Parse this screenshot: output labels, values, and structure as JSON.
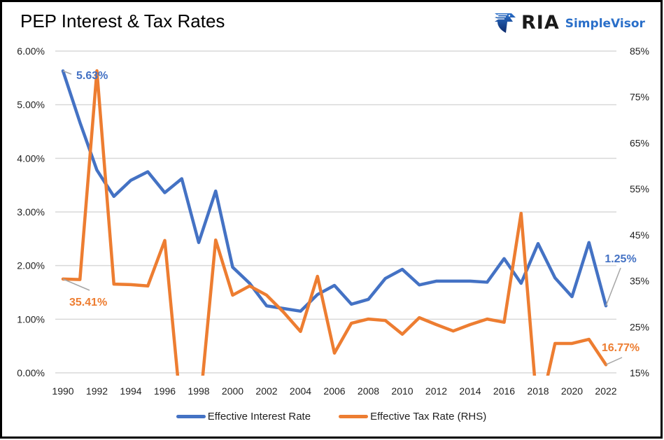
{
  "title": "PEP Interest & Tax Rates",
  "logo": {
    "icon": "eagle-shield-icon",
    "brand": "RIA",
    "product": "SimpleVisor",
    "brand_color": "#1a1a1a",
    "product_color": "#2a6fc9"
  },
  "chart_data": {
    "type": "line",
    "title": "PEP Interest & Tax Rates",
    "xlabel": "",
    "ylabel": "",
    "x": [
      1990,
      1991,
      1992,
      1993,
      1994,
      1995,
      1996,
      1997,
      1998,
      1999,
      2000,
      2001,
      2002,
      2003,
      2004,
      2005,
      2006,
      2007,
      2008,
      2009,
      2010,
      2011,
      2012,
      2013,
      2014,
      2015,
      2016,
      2017,
      2018,
      2019,
      2020,
      2021,
      2022
    ],
    "x_tick_labels": [
      "1990",
      "1992",
      "1994",
      "1996",
      "1998",
      "2000",
      "2002",
      "2004",
      "2006",
      "2008",
      "2010",
      "2012",
      "2014",
      "2016",
      "2018",
      "2020",
      "2022"
    ],
    "y_left": {
      "range": [
        0,
        6
      ],
      "ticks": [
        0,
        1,
        2,
        3,
        4,
        5,
        6
      ],
      "tick_labels": [
        "0.00%",
        "1.00%",
        "2.00%",
        "3.00%",
        "4.00%",
        "5.00%",
        "6.00%"
      ]
    },
    "y_right": {
      "range": [
        15,
        85
      ],
      "ticks": [
        15,
        25,
        35,
        45,
        55,
        65,
        75,
        85
      ],
      "tick_labels": [
        "15%",
        "25%",
        "35%",
        "45%",
        "55%",
        "65%",
        "75%",
        "85%"
      ]
    },
    "grid": true,
    "legend_position": "bottom",
    "series": [
      {
        "name": "Effective Interest Rate",
        "axis": "left",
        "color": "#4472c4",
        "values": [
          5.63,
          4.67,
          3.78,
          3.29,
          3.59,
          3.75,
          3.36,
          3.62,
          2.43,
          3.39,
          1.97,
          1.67,
          1.25,
          1.2,
          1.15,
          1.46,
          1.63,
          1.28,
          1.37,
          1.76,
          1.93,
          1.64,
          1.71,
          1.71,
          1.71,
          1.69,
          2.13,
          1.67,
          2.41,
          1.77,
          1.42,
          2.43,
          1.25
        ],
        "annotations": [
          {
            "x": 1990,
            "label": "5.63%"
          },
          {
            "x": 2022,
            "label": "1.25%"
          }
        ]
      },
      {
        "name": "Effective Tax Rate (RHS)",
        "axis": "right",
        "color": "#ed7d31",
        "values": [
          35.41,
          35.3,
          80.7,
          34.3,
          34.2,
          33.9,
          43.8,
          5.0,
          5.0,
          43.9,
          31.9,
          33.9,
          31.9,
          28.2,
          24.0,
          36.0,
          19.3,
          25.8,
          26.7,
          26.4,
          23.4,
          27.0,
          25.5,
          24.1,
          25.5,
          26.7,
          26.0,
          49.7,
          5.0,
          21.4,
          21.4,
          22.3,
          16.77
        ],
        "annotations": [
          {
            "x": 1990,
            "label": "35.41%"
          },
          {
            "x": 2022,
            "label": "16.77%"
          }
        ]
      }
    ]
  }
}
